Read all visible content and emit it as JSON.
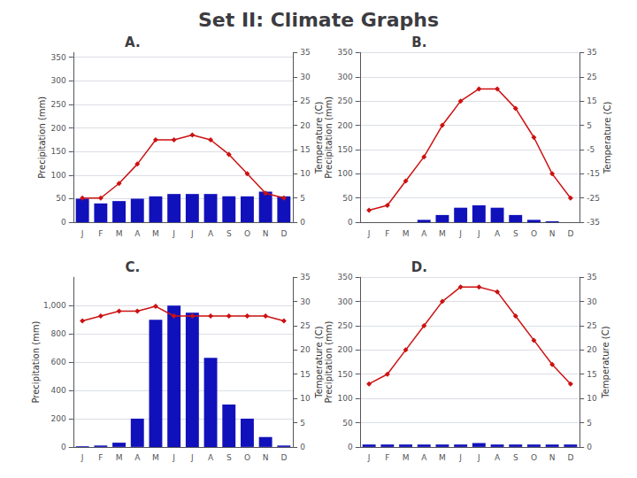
{
  "title": "Set II: Climate Graphs",
  "chart_data": [
    {
      "type": "bar",
      "title": "A.",
      "categories": [
        "J",
        "F",
        "M",
        "A",
        "M",
        "J",
        "J",
        "A",
        "S",
        "O",
        "N",
        "D"
      ],
      "ylabel": "Precipitation (mm)",
      "y2label": "Temperature (C)",
      "series": [
        {
          "type": "bar",
          "color": "#1111bb",
          "values": [
            50,
            40,
            45,
            50,
            55,
            60,
            60,
            60,
            55,
            55,
            65,
            55
          ]
        },
        {
          "type": "line",
          "color": "#cc1111",
          "marker": "diamond",
          "axis": "y2",
          "values": [
            5,
            5,
            8,
            12,
            17,
            17,
            18,
            17,
            14,
            10,
            6,
            5
          ]
        }
      ],
      "ylim": [
        0,
        360
      ],
      "yticks": [
        0,
        50,
        100,
        150,
        200,
        250,
        300,
        350
      ],
      "y2lim": [
        0,
        35
      ],
      "y2ticks": [
        0,
        5,
        10,
        15,
        20,
        25,
        30,
        35
      ],
      "grid": true
    },
    {
      "type": "bar",
      "title": "B.",
      "categories": [
        "J",
        "F",
        "M",
        "A",
        "M",
        "J",
        "J",
        "A",
        "S",
        "O",
        "N",
        "D"
      ],
      "ylabel": "Precipitation (mm)",
      "y2label": "Temperature (C)",
      "series": [
        {
          "type": "bar",
          "color": "#1111bb",
          "values": [
            0,
            0,
            0,
            5,
            15,
            30,
            35,
            30,
            15,
            5,
            2,
            0
          ]
        },
        {
          "type": "line",
          "color": "#cc1111",
          "marker": "diamond",
          "axis": "y2",
          "values": [
            -30,
            -28,
            -18,
            -8,
            5,
            15,
            20,
            20,
            12,
            0,
            -15,
            -25
          ]
        }
      ],
      "ylim": [
        0,
        350
      ],
      "yticks": [
        0,
        50,
        100,
        150,
        200,
        250,
        300,
        350
      ],
      "y2lim": [
        -35,
        35
      ],
      "y2ticks": [
        -35,
        -25,
        -15,
        -5,
        5,
        15,
        25,
        35
      ],
      "grid": true
    },
    {
      "type": "bar",
      "title": "C.",
      "categories": [
        "J",
        "F",
        "M",
        "A",
        "M",
        "J",
        "J",
        "A",
        "S",
        "O",
        "N",
        "D"
      ],
      "ylabel": "Precipitation (mm)",
      "y2label": "Temperature (C)",
      "series": [
        {
          "type": "bar",
          "color": "#1111bb",
          "values": [
            5,
            10,
            30,
            200,
            900,
            1000,
            950,
            630,
            300,
            200,
            70,
            10
          ]
        },
        {
          "type": "line",
          "color": "#cc1111",
          "marker": "diamond",
          "axis": "y2",
          "values": [
            26,
            27,
            28,
            28,
            29,
            27,
            27,
            27,
            27,
            27,
            27,
            26
          ]
        }
      ],
      "ylim": [
        0,
        1200
      ],
      "yticks": [
        0,
        200,
        400,
        600,
        800,
        1000
      ],
      "y2lim": [
        0,
        35
      ],
      "y2ticks": [
        0,
        5,
        10,
        15,
        20,
        25,
        30,
        35
      ],
      "grid": true
    },
    {
      "type": "bar",
      "title": "D.",
      "categories": [
        "J",
        "F",
        "M",
        "A",
        "M",
        "J",
        "J",
        "A",
        "S",
        "O",
        "N",
        "D"
      ],
      "ylabel": "Precipitation (mm)",
      "y2label": "Temperature (C)",
      "series": [
        {
          "type": "bar",
          "color": "#1111bb",
          "values": [
            5,
            5,
            5,
            5,
            5,
            5,
            8,
            5,
            5,
            5,
            5,
            5
          ]
        },
        {
          "type": "line",
          "color": "#cc1111",
          "marker": "diamond",
          "axis": "y2",
          "values": [
            13,
            15,
            20,
            25,
            30,
            33,
            33,
            32,
            27,
            22,
            17,
            13
          ]
        }
      ],
      "ylim": [
        0,
        350
      ],
      "yticks": [
        0,
        50,
        100,
        150,
        200,
        250,
        300,
        350
      ],
      "y2lim": [
        0,
        35
      ],
      "y2ticks": [
        0,
        5,
        10,
        15,
        20,
        25,
        30,
        35
      ],
      "grid": true
    }
  ]
}
